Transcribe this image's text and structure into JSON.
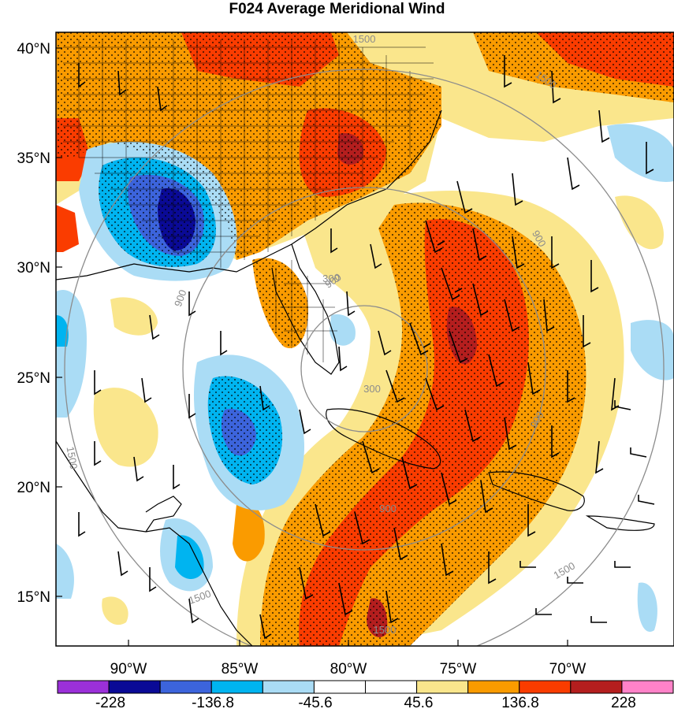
{
  "title": "F024 Average Meridional Wind",
  "latitude_labels": [
    "40°N",
    "35°N",
    "30°N",
    "25°N",
    "20°N",
    "15°N"
  ],
  "longitude_labels": [
    "90°W",
    "85°W",
    "80°W",
    "75°W",
    "70°W"
  ],
  "contour_labels": [
    "1500",
    "1500",
    "900",
    "900",
    "900",
    "300",
    "300",
    "900",
    "900",
    "1500",
    "1500",
    "1500",
    "1500"
  ],
  "colorbar": {
    "labels": [
      "-228",
      "-136.8",
      "-45.6",
      "45.6",
      "136.8",
      "228"
    ],
    "colors": [
      "#9b30d9",
      "#0a0a96",
      "#3c64dc",
      "#00b4f0",
      "#aadcf5",
      "#ffffff",
      "#ffffff",
      "#fae68c",
      "#fa9b00",
      "#fa3c00",
      "#b41e1e",
      "#ff82c8"
    ]
  },
  "map_colors": {
    "strong_negative": "#0a0a96",
    "negative": "#3c64dc",
    "mid_negative": "#00b4f0",
    "weak_negative": "#aadcf5",
    "neutral": "#ffffff",
    "weak_positive": "#fae68c",
    "positive": "#fa9b00",
    "strong_positive": "#fa3c00",
    "extreme_positive": "#b41e1e"
  }
}
